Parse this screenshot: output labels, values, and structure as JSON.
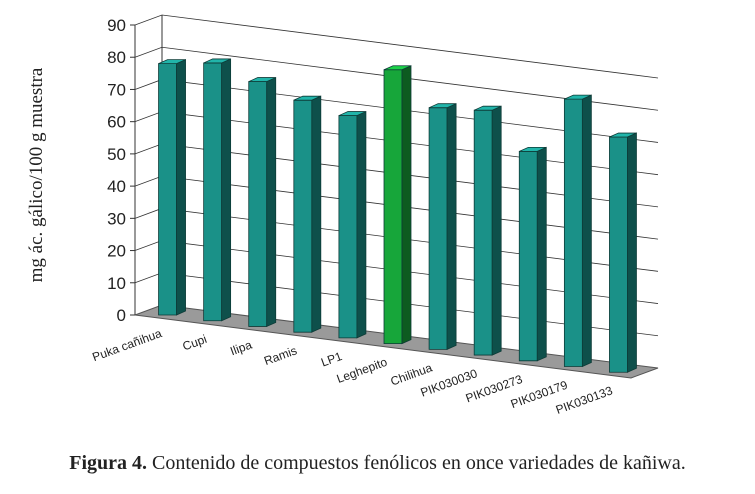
{
  "chart_data": {
    "type": "bar",
    "title": "",
    "xlabel": "",
    "ylabel": "mg ác. gálico/100 g muestra",
    "ylim": [
      0,
      90
    ],
    "yticks": [
      0,
      10,
      20,
      30,
      40,
      50,
      60,
      70,
      80,
      90
    ],
    "grid": true,
    "categories": [
      "Puka cañihua",
      "Cupi",
      "Ilipa",
      "Ramis",
      "LP1",
      "Leghepito",
      "Chilihua",
      "PIK030030",
      "PIK030273",
      "PIK030179",
      "PIK030133"
    ],
    "values": [
      78,
      80,
      76,
      72,
      69,
      85,
      75,
      76,
      65,
      83,
      73
    ],
    "highlight_index": 5,
    "colors": {
      "bar": "#1a9188",
      "bar_highlight": "#17a63a",
      "floor": "#9a9a9a"
    }
  },
  "caption": {
    "label": "Figura 4.",
    "text": " Contenido de compuestos fenólicos en once variedades de kañiwa."
  }
}
